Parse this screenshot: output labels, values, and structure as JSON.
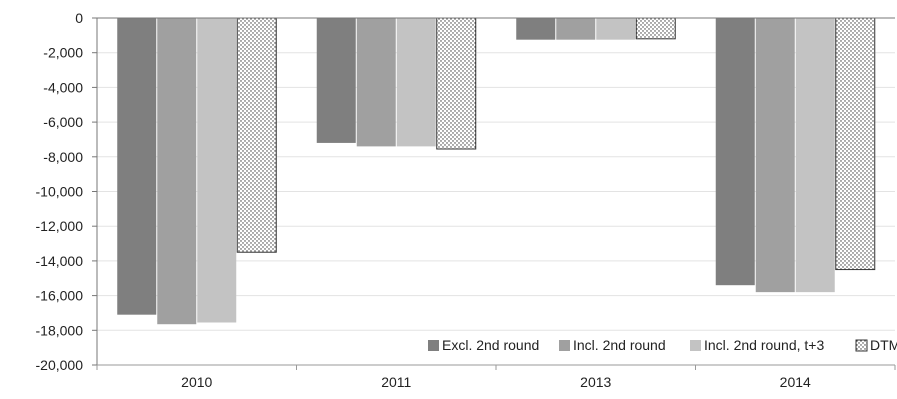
{
  "chart_data": {
    "type": "bar",
    "categories": [
      "2010",
      "2011",
      "2013",
      "2014"
    ],
    "series": [
      {
        "name": "Excl. 2nd round",
        "values": [
          -17100,
          -7200,
          -1250,
          -15400
        ],
        "color": "#7f7f7f",
        "pattern": "solid"
      },
      {
        "name": "Incl. 2nd round",
        "values": [
          -17650,
          -7400,
          -1250,
          -15800
        ],
        "color": "#a0a0a0",
        "pattern": "solid"
      },
      {
        "name": "Incl. 2nd round, t+3",
        "values": [
          -17550,
          -7400,
          -1250,
          -15800
        ],
        "color": "#c3c3c3",
        "pattern": "solid"
      },
      {
        "name": "DTM",
        "values": [
          -13500,
          -7550,
          -1200,
          -14500
        ],
        "color": "#ffffff",
        "pattern": "dots"
      }
    ],
    "yticks": [
      0,
      -2000,
      -4000,
      -6000,
      -8000,
      -10000,
      -12000,
      -14000,
      -16000,
      -18000,
      -20000
    ],
    "ytick_labels": [
      "0",
      "-2,000",
      "-4,000",
      "-6,000",
      "-8,000",
      "-10,000",
      "-12,000",
      "-14,000",
      "-16,000",
      "-18,000",
      "-20,000"
    ],
    "ylim": [
      -20000,
      0
    ],
    "grid": true,
    "legend_position": "bottom-right"
  }
}
